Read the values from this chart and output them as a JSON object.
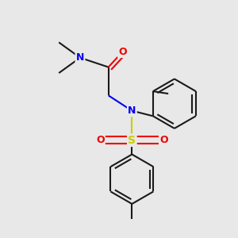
{
  "background_color": "#e8e8e8",
  "bond_color": "#1a1a1a",
  "N_color": "#0000ee",
  "O_color": "#ee0000",
  "S_color": "#cccc00",
  "line_width": 1.5,
  "double_sep": 0.08,
  "figsize": [
    3.0,
    3.0
  ],
  "dpi": 100,
  "xlim": [
    0,
    10
  ],
  "ylim": [
    0,
    10
  ],
  "ring_r": 1.05,
  "font_size": 9
}
